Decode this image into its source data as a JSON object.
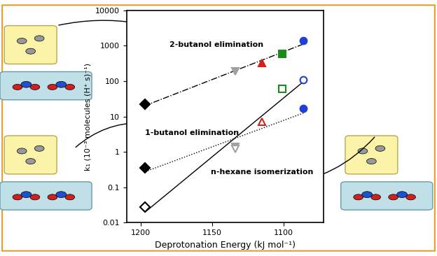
{
  "chart_data": {
    "type": "scatter",
    "x_label": "Deprotonation Energy (kJ mol⁻¹)",
    "y_label": "k₁ (10⁻³ molecules (H⁺ s)⁻¹)",
    "log": "y",
    "grid": false,
    "xlim": [
      1210,
      1072
    ],
    "xticks": [
      1200,
      1150,
      1100
    ],
    "ylim": [
      0.01,
      10000
    ],
    "yticks": [
      0.01,
      0.1,
      1,
      10,
      100,
      1000,
      10000
    ],
    "series": [
      {
        "name": "2-butanol elimination",
        "line_style": "dashdot",
        "x": [
          1197,
          1134,
          1115,
          1101,
          1086
        ],
        "values": [
          22,
          190,
          320,
          600,
          1400
        ],
        "colors": [
          "#000000",
          "#a0a0a0",
          "#d62020",
          "#1a8a1a",
          "#1f3fd6"
        ],
        "marker": [
          "diamond",
          "triangle_down",
          "triangle_up",
          "square",
          "circle"
        ]
      },
      {
        "name": "1-butanol elimination",
        "line_style": "dotted",
        "x": [
          1197,
          1134,
          1086
        ],
        "values": [
          0.35,
          1.4,
          17
        ],
        "colors": [
          "#000000",
          "#a0a0a0",
          "#1f3fd6"
        ],
        "marker": [
          "diamond",
          "triangle_down",
          "circle"
        ]
      },
      {
        "name": "n-hexane isomerization",
        "line_style": "solid",
        "x": [
          1197,
          1134,
          1115,
          1101,
          1086
        ],
        "values": [
          0.028,
          1.2,
          7,
          60,
          110
        ],
        "colors": [
          "#000000",
          "#a0a0a0",
          "#d62020",
          "#1a8a1a",
          "#1f3fd6"
        ],
        "marker": [
          "diamond_open",
          "triangle_down_open",
          "triangle_up_open",
          "square_open",
          "circle_open"
        ]
      }
    ]
  }
}
